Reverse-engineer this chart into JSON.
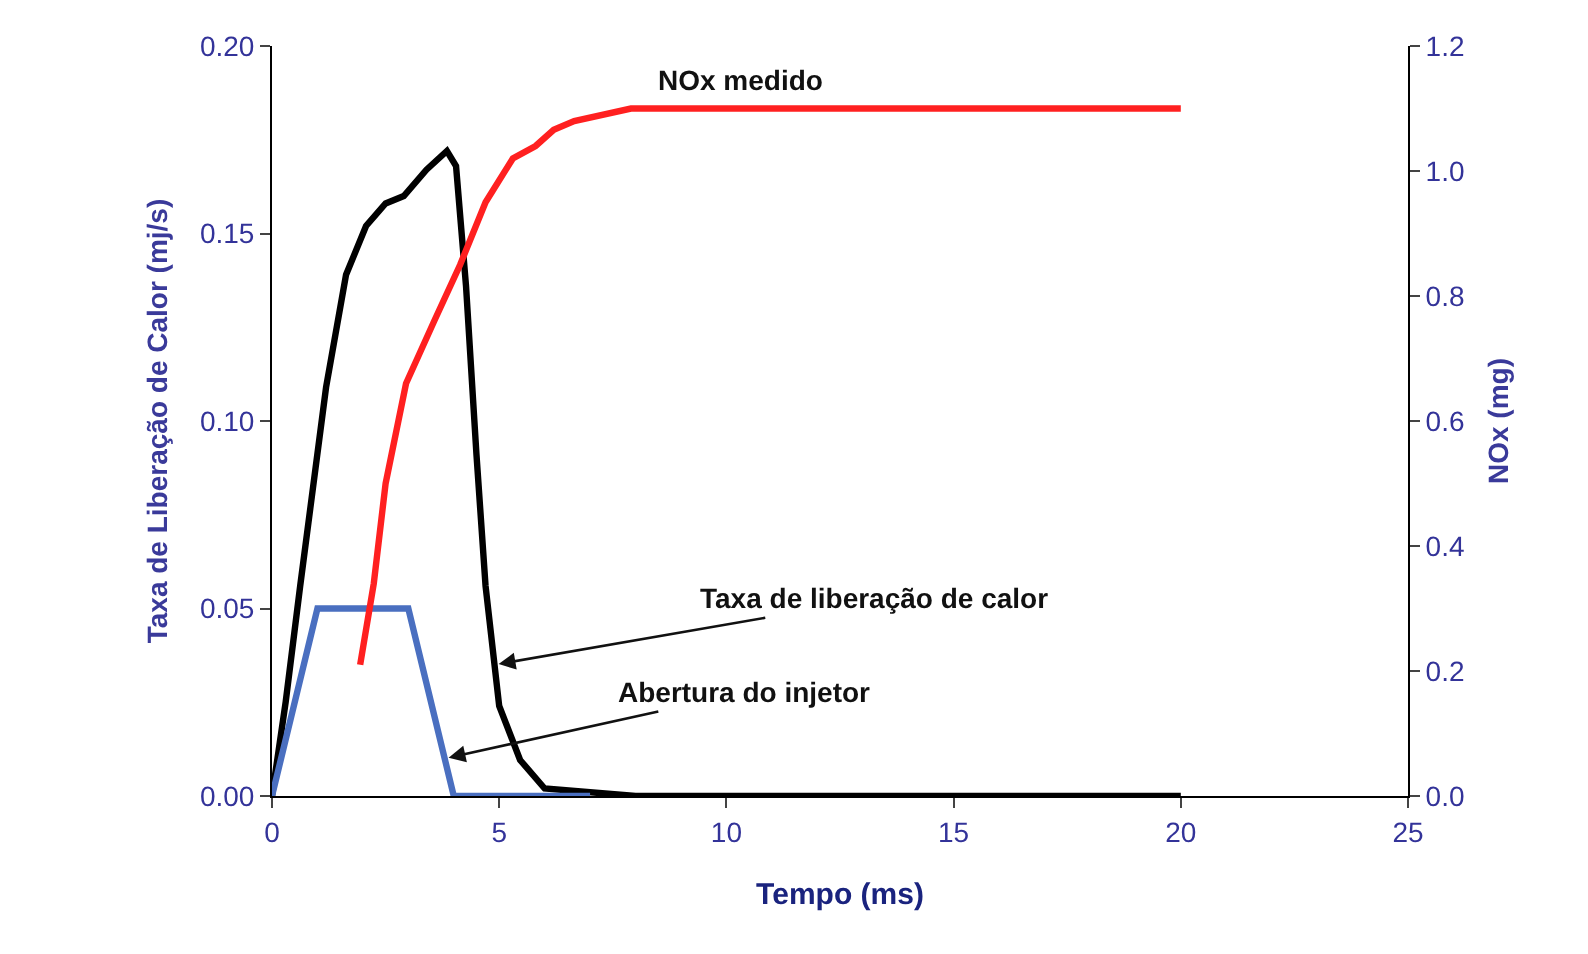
{
  "chart_data": {
    "type": "line",
    "xlabel": "Tempo (ms)",
    "ylabel": "Taxa de Liberação de Calor (mj/s)",
    "y2label": "NOx (mg)",
    "xlim": [
      0,
      25
    ],
    "xticks": [
      0,
      5,
      10,
      15,
      20,
      25
    ],
    "ylim": [
      0,
      0.2
    ],
    "yticks": [
      {
        "value": 0,
        "label": "0.00"
      },
      {
        "value": 0.05,
        "label": "0.05"
      },
      {
        "value": 0.1,
        "label": "0.10"
      },
      {
        "value": 0.15,
        "label": "0.15"
      },
      {
        "value": 0.2,
        "label": "0.20"
      }
    ],
    "y2lim": [
      0,
      1.2
    ],
    "y2ticks": [
      {
        "value": 0,
        "label": "0.0"
      },
      {
        "value": 0.2,
        "label": "0.2"
      },
      {
        "value": 0.4,
        "label": "0.4"
      },
      {
        "value": 0.6,
        "label": "0.6"
      },
      {
        "value": 0.8,
        "label": "0.8"
      },
      {
        "value": 1,
        "label": "1.0"
      },
      {
        "value": 1.2,
        "label": "1.2"
      }
    ],
    "marker": "none",
    "line_style": "solid",
    "series": [
      {
        "color": "#000000",
        "x": [
          0,
          0.3,
          0.62,
          1.19,
          1.63,
          2.07,
          2.5,
          2.9,
          3.4,
          3.85,
          4.05,
          4.27,
          4.5,
          4.7,
          5.0,
          5.46,
          6.0,
          8,
          20
        ],
        "values": [
          0,
          0.025,
          0.056,
          0.109,
          0.139,
          0.152,
          0.158,
          0.16,
          0.167,
          0.172,
          0.168,
          0.136,
          0.091,
          0.056,
          0.024,
          0.0096,
          0.002,
          0,
          0
        ]
      },
      {
        "color": "#4a6fc0",
        "x": [
          0,
          1,
          3,
          4,
          7
        ],
        "values": [
          0,
          0.05,
          0.05,
          0,
          0
        ]
      },
      {
        "color": "#ff2020",
        "axis": "y2",
        "x": [
          1.94,
          2.24,
          2.5,
          2.95,
          3.57,
          4.14,
          4.7,
          5.3,
          5.8,
          6.2,
          6.65,
          7.9,
          20
        ],
        "values": [
          0.21,
          0.34,
          0.5,
          0.66,
          0.76,
          0.85,
          0.95,
          1.02,
          1.04,
          1.066,
          1.08,
          1.1,
          1.1
        ]
      }
    ],
    "annotations": [
      {
        "text": "NOx medido",
        "x": 10.3,
        "y": 0.184
      },
      {
        "text": "Taxa de liberação de calor",
        "x": 4.9,
        "y": 0.035
      },
      {
        "text": "Abertura do injetor",
        "x": 3.8,
        "y": 0.01
      }
    ]
  }
}
